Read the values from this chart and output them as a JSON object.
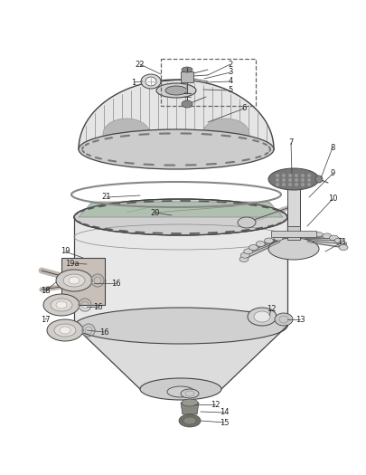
{
  "bg_color": "#ffffff",
  "line_color": "#444444",
  "label_color": "#222222",
  "label_fontsize": 6.0,
  "figsize": [
    4.05,
    5.25
  ],
  "dpi": 100
}
